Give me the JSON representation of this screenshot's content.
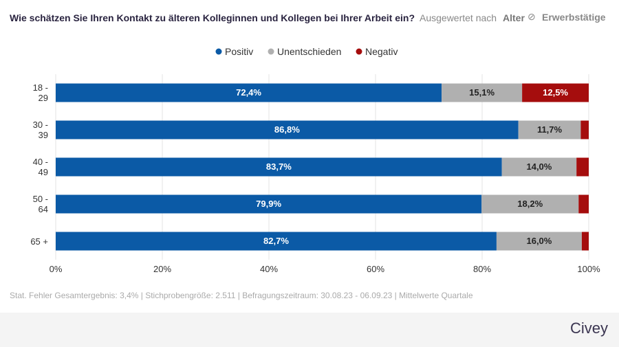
{
  "chart_data": {
    "type": "stacked-bar-horizontal",
    "title": "Wie schätzen Sie Ihren Kontakt zu älteren Kolleginnen und Kollegen bei Ihrer Arbeit ein?",
    "filter_label": "Ausgewertet nach",
    "filter_value": "Alter",
    "filter_group": "Erwerbstätige",
    "categories": [
      "18 - 29",
      "30 - 39",
      "40 - 49",
      "50 - 64",
      "65 +"
    ],
    "series": [
      {
        "name": "Positiv",
        "color": "#0b5aa6",
        "label_color": "#ffffff",
        "values": [
          72.4,
          86.8,
          83.7,
          79.9,
          82.7
        ],
        "value_labels": [
          "72,4%",
          "86,8%",
          "83,7%",
          "79,9%",
          "82,7%"
        ]
      },
      {
        "name": "Unentschieden",
        "color": "#b0b0b0",
        "label_color": "#222222",
        "values": [
          15.1,
          11.7,
          14.0,
          18.2,
          16.0
        ],
        "value_labels": [
          "15,1%",
          "11,7%",
          "14,0%",
          "18,2%",
          "16,0%"
        ]
      },
      {
        "name": "Negativ",
        "color": "#a50d0d",
        "label_color": "#ffffff",
        "values": [
          12.5,
          1.5,
          2.3,
          1.9,
          1.3
        ],
        "value_labels": [
          "12,5%",
          null,
          null,
          null,
          null
        ]
      }
    ],
    "xlim": [
      0,
      100
    ],
    "xticks": [
      {
        "value": 0,
        "label": "0%"
      },
      {
        "value": 20,
        "label": "20%"
      },
      {
        "value": 40,
        "label": "40%"
      },
      {
        "value": 60,
        "label": "60%"
      },
      {
        "value": 80,
        "label": "80%"
      },
      {
        "value": 100,
        "label": "100%"
      }
    ],
    "grid": true,
    "legend": "top",
    "footnote": "Stat. Fehler Gesamtergebnis: 3,4% | Stichprobengröße: 2.511 | Befragungszeitraum: 30.08.23 - 06.09.23 | Mittelwerte Quartale",
    "brand": "Civey"
  }
}
